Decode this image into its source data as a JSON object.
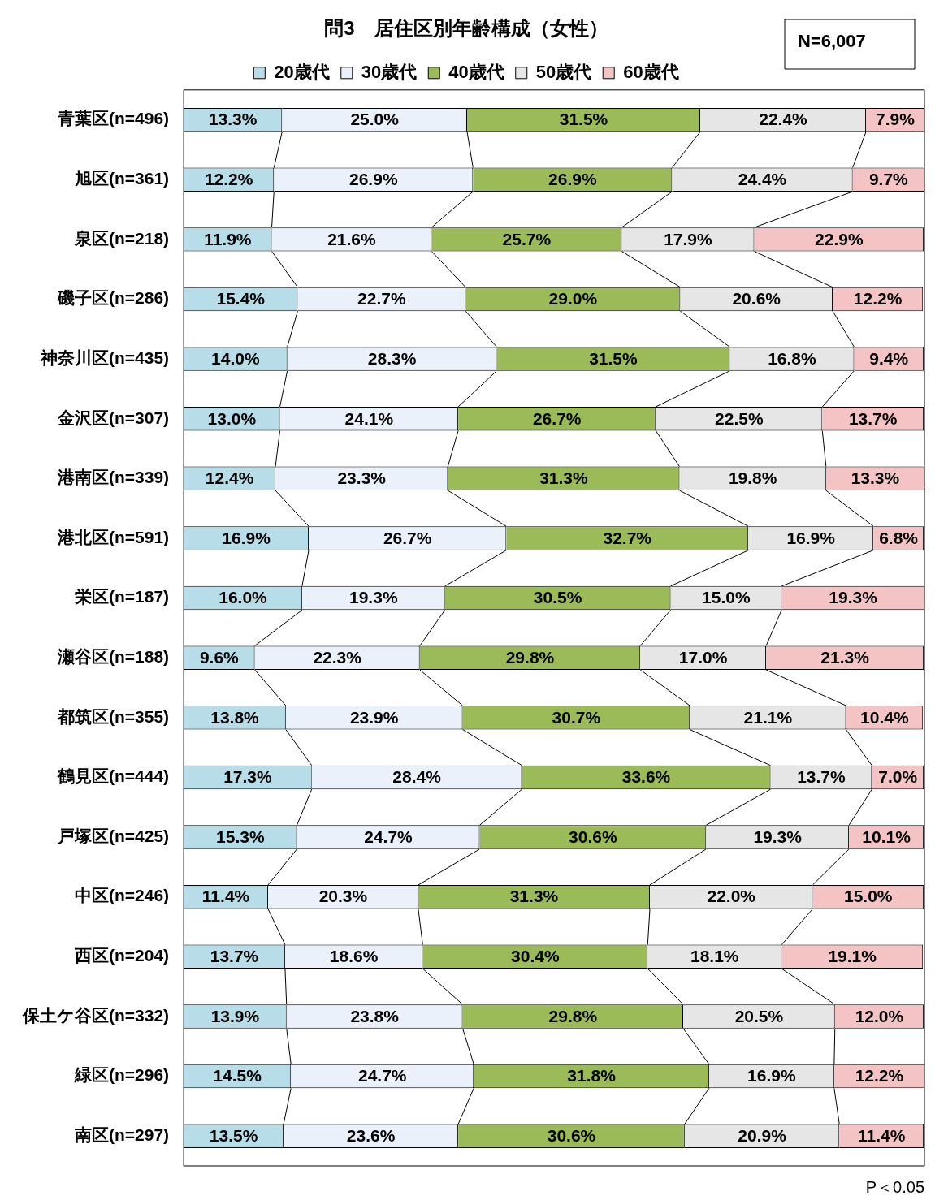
{
  "chart_data": {
    "type": "bar",
    "orientation": "horizontal",
    "stacked": true,
    "title": "問3　居住区別年齢構成（女性）",
    "legend": "top",
    "grid": false,
    "tick_labels": "y",
    "xlim": [
      0,
      100.1
    ],
    "annotations": [
      "N=6,007",
      "P＜0.05"
    ],
    "categories": [
      "青葉区(n=496)",
      "旭区(n=361)",
      "泉区(n=218)",
      "磯子区(n=286)",
      "神奈川区(n=435)",
      "金沢区(n=307)",
      "港南区(n=339)",
      "港北区(n=591)",
      "栄区(n=187)",
      "瀬谷区(n=188)",
      "都筑区(n=355)",
      "鶴見区(n=444)",
      "戸塚区(n=425)",
      "中区(n=246)",
      "西区(n=204)",
      "保土ケ谷区(n=332)",
      "緑区(n=296)",
      "南区(n=297)"
    ],
    "series": [
      {
        "name": "20歳代",
        "color": "#b7dde8",
        "values": [
          13.3,
          12.2,
          11.9,
          15.4,
          14.0,
          13.0,
          12.4,
          16.9,
          16.0,
          9.6,
          13.8,
          17.3,
          15.3,
          11.4,
          13.7,
          13.9,
          14.5,
          13.5
        ],
        "value_labels": [
          "13.3%",
          "12.2%",
          "11.9%",
          "15.4%",
          "14.0%",
          "13.0%",
          "12.4%",
          "16.9%",
          "16.0%",
          "9.6%",
          "13.8%",
          "17.3%",
          "15.3%",
          "11.4%",
          "13.7%",
          "13.9%",
          "14.5%",
          "13.5%"
        ]
      },
      {
        "name": "30歳代",
        "color": "#eaf1fb",
        "values": [
          25.0,
          26.9,
          21.6,
          22.7,
          28.3,
          24.1,
          23.3,
          26.7,
          19.3,
          22.3,
          23.9,
          28.4,
          24.7,
          20.3,
          18.6,
          23.8,
          24.7,
          23.6
        ],
        "value_labels": [
          "25.0%",
          "26.9%",
          "21.6%",
          "22.7%",
          "28.3%",
          "24.1%",
          "23.3%",
          "26.7%",
          "19.3%",
          "22.3%",
          "23.9%",
          "28.4%",
          "24.7%",
          "20.3%",
          "18.6%",
          "23.8%",
          "24.7%",
          "23.6%"
        ]
      },
      {
        "name": "40歳代",
        "color": "#9bbb59",
        "values": [
          31.5,
          26.9,
          25.7,
          29.0,
          31.5,
          26.7,
          31.3,
          32.7,
          30.5,
          29.8,
          30.7,
          33.6,
          30.6,
          31.3,
          30.4,
          29.8,
          31.8,
          30.6
        ],
        "value_labels": [
          "31.5%",
          "26.9%",
          "25.7%",
          "29.0%",
          "31.5%",
          "26.7%",
          "31.3%",
          "32.7%",
          "30.5%",
          "29.8%",
          "30.7%",
          "33.6%",
          "30.6%",
          "31.3%",
          "30.4%",
          "29.8%",
          "31.8%",
          "30.6%"
        ]
      },
      {
        "name": "50歳代",
        "color": "#e6e6e6",
        "values": [
          22.4,
          24.4,
          17.9,
          20.6,
          16.8,
          22.5,
          19.8,
          16.9,
          15.0,
          17.0,
          21.1,
          13.7,
          19.3,
          22.0,
          18.1,
          20.5,
          16.9,
          20.9
        ],
        "value_labels": [
          "22.4%",
          "24.4%",
          "17.9%",
          "20.6%",
          "16.8%",
          "22.5%",
          "19.8%",
          "16.9%",
          "15.0%",
          "17.0%",
          "21.1%",
          "13.7%",
          "19.3%",
          "22.0%",
          "18.1%",
          "20.5%",
          "16.9%",
          "20.9%"
        ]
      },
      {
        "name": "60歳代",
        "color": "#f4c4c4",
        "values": [
          7.9,
          9.7,
          22.9,
          12.2,
          9.4,
          13.7,
          13.3,
          6.8,
          19.3,
          21.3,
          10.4,
          7.0,
          10.1,
          15.0,
          19.1,
          12.0,
          12.2,
          11.4
        ],
        "value_labels": [
          "7.9%",
          "9.7%",
          "22.9%",
          "12.2%",
          "9.4%",
          "13.7%",
          "13.3%",
          "6.8%",
          "19.3%",
          "21.3%",
          "10.4%",
          "7.0%",
          "10.1%",
          "15.0%",
          "19.1%",
          "12.0%",
          "12.2%",
          "11.4%"
        ]
      }
    ]
  }
}
